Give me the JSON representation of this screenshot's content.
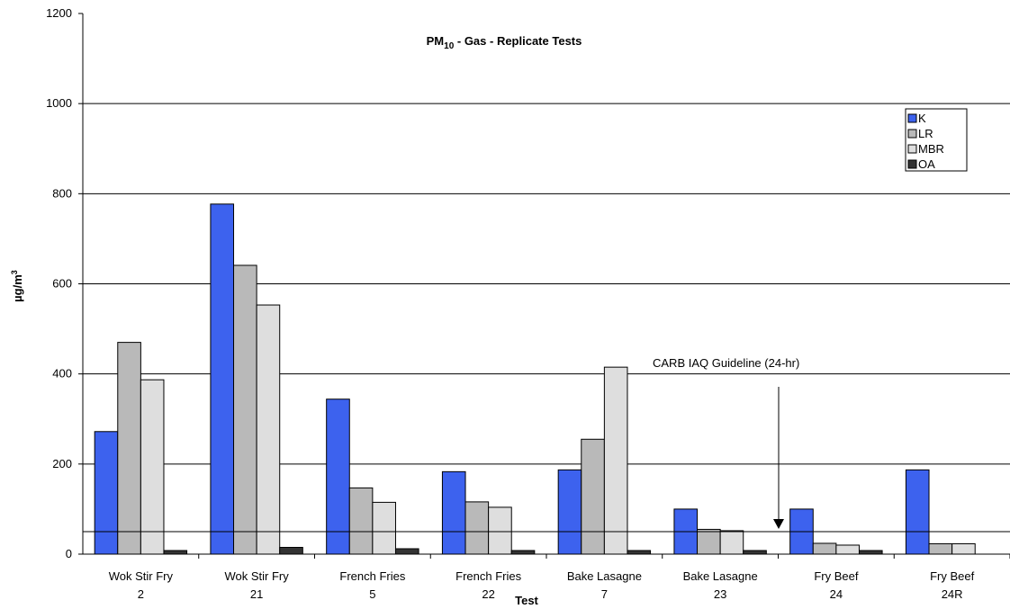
{
  "chart_data": {
    "type": "bar",
    "title": {
      "main": "PM",
      "sub": "10",
      "rest": " - Gas - Replicate Tests"
    },
    "y_label": {
      "main": "µg/m",
      "sup": "3"
    },
    "x_label": "Test",
    "categories": [
      [
        "Wok Stir Fry",
        "2"
      ],
      [
        "Wok Stir Fry",
        "21"
      ],
      [
        "French Fries",
        "5"
      ],
      [
        "French Fries",
        "22"
      ],
      [
        "Bake Lasagne",
        "7"
      ],
      [
        "Bake Lasagne",
        "23"
      ],
      [
        "Fry Beef",
        "24"
      ],
      [
        "Fry Beef",
        "24R"
      ]
    ],
    "series": [
      {
        "name": "K",
        "color": "#3d62ee",
        "values": [
          272,
          777,
          344,
          183,
          187,
          100,
          100,
          187
        ]
      },
      {
        "name": "LR",
        "color": "#b9b9b9",
        "values": [
          470,
          641,
          147,
          116,
          255,
          55,
          24,
          23
        ]
      },
      {
        "name": "MBR",
        "color": "#dedede",
        "values": [
          387,
          553,
          115,
          104,
          415,
          52,
          20,
          23
        ]
      },
      {
        "name": "OA",
        "color": "#333333",
        "values": [
          8,
          15,
          12,
          8,
          8,
          8,
          8,
          null
        ]
      }
    ],
    "ylim": [
      0,
      1200
    ],
    "yticks": [
      0,
      200,
      400,
      600,
      800,
      1000,
      1200
    ],
    "grid": true,
    "guideline": {
      "value": 50,
      "label": "CARB IAQ Guideline (24-hr)"
    },
    "legend": "upper right"
  }
}
